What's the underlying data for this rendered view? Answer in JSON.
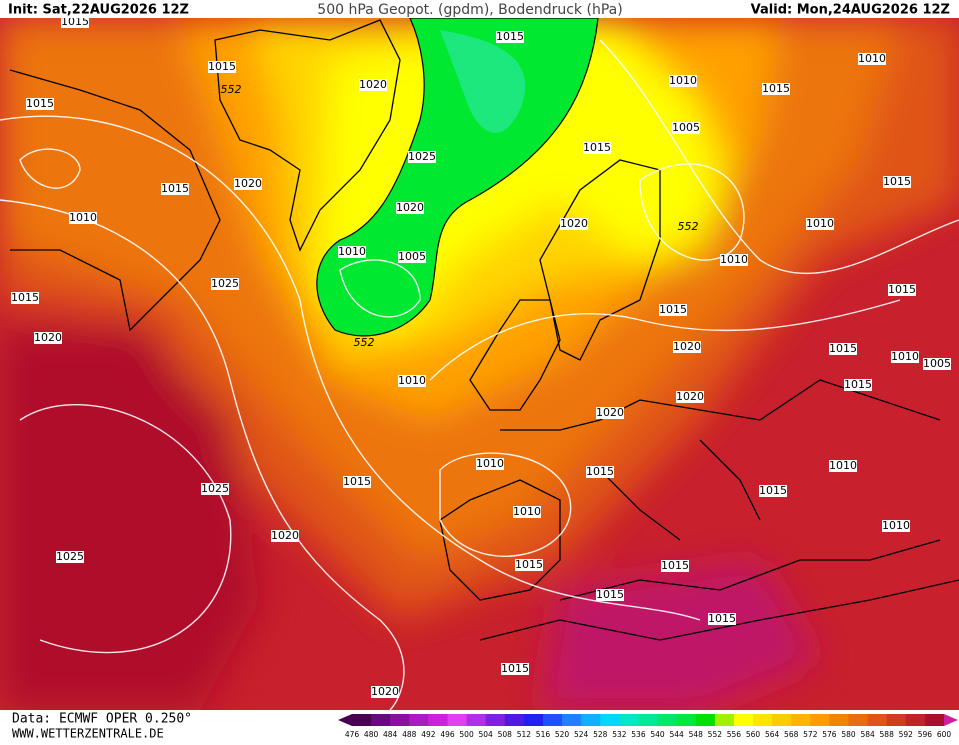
{
  "header": {
    "init": "Init: Sat,22AUG2026 12Z",
    "title": "500 hPa Geopot. (gpdm), Bodendruck (hPa)",
    "valid": "Valid: Mon,24AUG2026 12Z"
  },
  "footer": {
    "source": "Data: ECMWF OPER 0.250°",
    "website": "WWW.WETTERZENTRALE.DE"
  },
  "colorbar": {
    "labels": [
      476,
      480,
      484,
      488,
      492,
      496,
      500,
      504,
      508,
      512,
      516,
      520,
      524,
      528,
      532,
      536,
      540,
      544,
      548,
      552,
      556,
      560,
      564,
      568,
      572,
      576,
      580,
      584,
      588,
      592,
      596,
      600
    ],
    "colors": [
      "#4a0050",
      "#6a0a80",
      "#8a12a0",
      "#aa1cc0",
      "#cc22dc",
      "#e040f0",
      "#b030e8",
      "#8020e0",
      "#5018e0",
      "#2020f0",
      "#2050ff",
      "#2080ff",
      "#10b0ff",
      "#00d8ff",
      "#00e8c8",
      "#00e898",
      "#00e868",
      "#00e840",
      "#00e000",
      "#a0f000",
      "#ffff00",
      "#ffe400",
      "#ffcc00",
      "#ffb400",
      "#ff9c00",
      "#f08400",
      "#e86c10",
      "#e05418",
      "#d03c20",
      "#c02428",
      "#a81030"
    ]
  },
  "contour_labels": [
    "1015",
    "1015",
    "552",
    "1015",
    "1020",
    "1015",
    "1010",
    "1015",
    "1010",
    "1005",
    "1015",
    "1025",
    "1015",
    "1020",
    "1010",
    "1020",
    "1020",
    "552",
    "1015",
    "1010",
    "1010",
    "1005",
    "1010",
    "1025",
    "1015",
    "1015",
    "1015",
    "1020",
    "552",
    "1020",
    "1015",
    "1010",
    "1005",
    "1010",
    "1015",
    "1020",
    "1020",
    "1010",
    "1015",
    "1010",
    "1015",
    "1025",
    "1015",
    "1010",
    "1010",
    "1020",
    "1025",
    "1015",
    "1015",
    "1015",
    "1015",
    "1015",
    "1020"
  ]
}
